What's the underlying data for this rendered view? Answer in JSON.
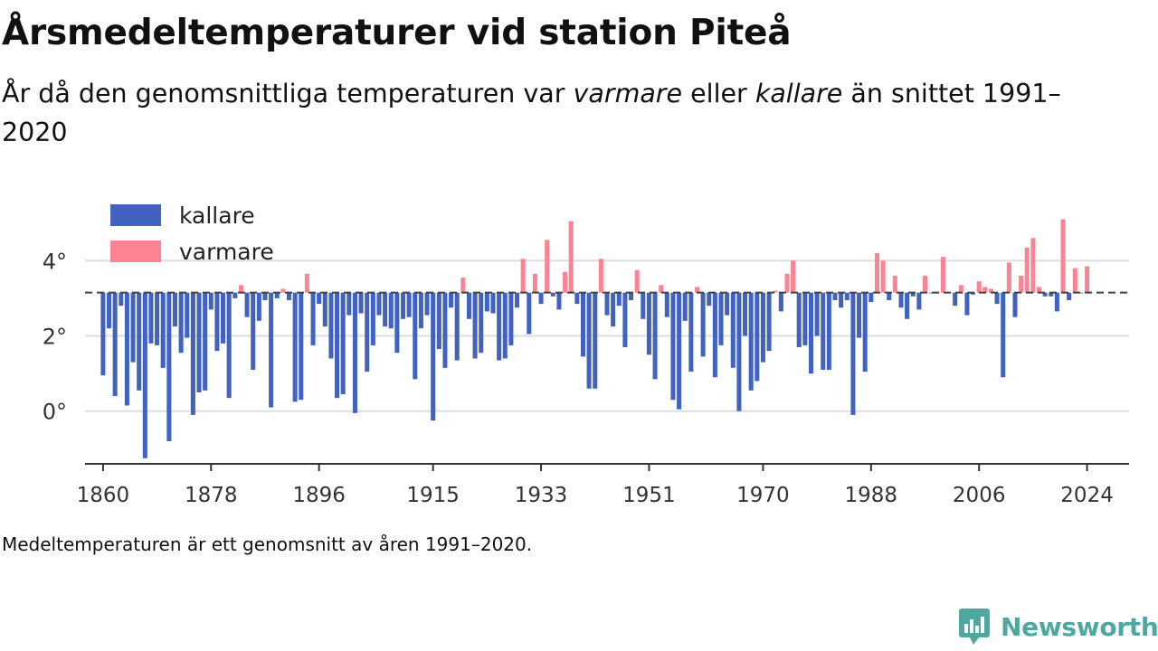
{
  "title": "Årsmedeltemperaturer vid station Piteå",
  "subtitle": {
    "part1": "År då den genomsnittliga temperaturen var ",
    "warm_word": "varmare",
    "part2": " eller ",
    "cold_word": "kallare",
    "part3": " än snittet 1991–2020"
  },
  "footnote": "Medeltemperaturen är ett genomsnitt av åren 1991–2020.",
  "brand": {
    "name": "Newsworthy",
    "icon": "newsworthy-logo-icon",
    "color": "#4fa8a0"
  },
  "chart_data": {
    "type": "bar",
    "baseline": 3.15,
    "ylim": [
      -1.4,
      5.4
    ],
    "xlim": [
      1857,
      2031
    ],
    "y_ticks": [
      0,
      2,
      4
    ],
    "y_tick_labels": [
      "0°",
      "2°",
      "4°"
    ],
    "x_ticks": [
      1860,
      1878,
      1896,
      1915,
      1933,
      1951,
      1970,
      1988,
      2006,
      2024
    ],
    "x_tick_labels": [
      "1860",
      "1878",
      "1896",
      "1915",
      "1933",
      "1951",
      "1970",
      "1988",
      "2006",
      "2024"
    ],
    "legend": {
      "placement": "top-left",
      "items": [
        {
          "label": "kallare",
          "color": "#4262c0"
        },
        {
          "label": "varmare",
          "color": "#fb8394"
        }
      ]
    },
    "colors": {
      "kallare": "#4262c0",
      "varmare": "#fb8394",
      "baseline": "#444444",
      "grid": "#dddddd"
    },
    "start_year": 1860,
    "values": [
      0.95,
      2.2,
      0.4,
      2.8,
      0.15,
      1.3,
      0.55,
      -1.25,
      1.8,
      1.75,
      1.15,
      -0.8,
      2.25,
      1.55,
      1.95,
      -0.1,
      0.5,
      0.55,
      2.7,
      1.6,
      1.8,
      0.35,
      3.0,
      3.35,
      2.5,
      1.1,
      2.4,
      2.95,
      0.1,
      3.0,
      3.25,
      2.95,
      0.25,
      0.3,
      3.65,
      1.75,
      2.85,
      2.25,
      1.4,
      0.35,
      0.45,
      2.55,
      -0.05,
      2.6,
      1.05,
      1.75,
      2.55,
      2.25,
      2.2,
      1.55,
      2.45,
      2.5,
      0.85,
      2.2,
      2.55,
      -0.25,
      1.65,
      1.15,
      2.75,
      1.35,
      3.55,
      2.45,
      1.4,
      1.55,
      2.65,
      2.6,
      1.35,
      1.4,
      1.75,
      2.75,
      4.05,
      2.05,
      3.65,
      2.85,
      4.55,
      3.05,
      2.7,
      3.7,
      5.05,
      2.85,
      1.45,
      0.6,
      0.6,
      4.05,
      2.55,
      2.25,
      2.8,
      1.7,
      2.95,
      3.75,
      2.45,
      1.5,
      0.85,
      3.35,
      2.5,
      0.3,
      0.05,
      2.4,
      1.05,
      3.3,
      1.45,
      2.8,
      0.9,
      1.75,
      2.55,
      1.15,
      0.0,
      2.0,
      0.55,
      0.8,
      1.3,
      1.6,
      3.2,
      2.65,
      3.65,
      4.0,
      1.7,
      1.75,
      1.0,
      2.0,
      1.1,
      1.1,
      2.95,
      2.75,
      2.95,
      -0.1,
      1.95,
      1.05,
      2.9,
      4.2,
      4.0,
      2.95,
      3.6,
      2.75,
      2.45,
      3.05,
      2.7,
      3.6,
      3.15,
      3.15,
      4.1,
      3.15,
      2.8,
      3.35,
      2.55,
      3.1,
      3.45,
      3.3,
      3.25,
      2.85,
      0.9,
      3.95,
      2.5,
      3.6,
      4.35,
      4.6,
      3.3,
      3.05,
      3.05,
      2.65,
      5.1,
      2.95,
      3.8,
      3.15,
      3.85
    ]
  }
}
